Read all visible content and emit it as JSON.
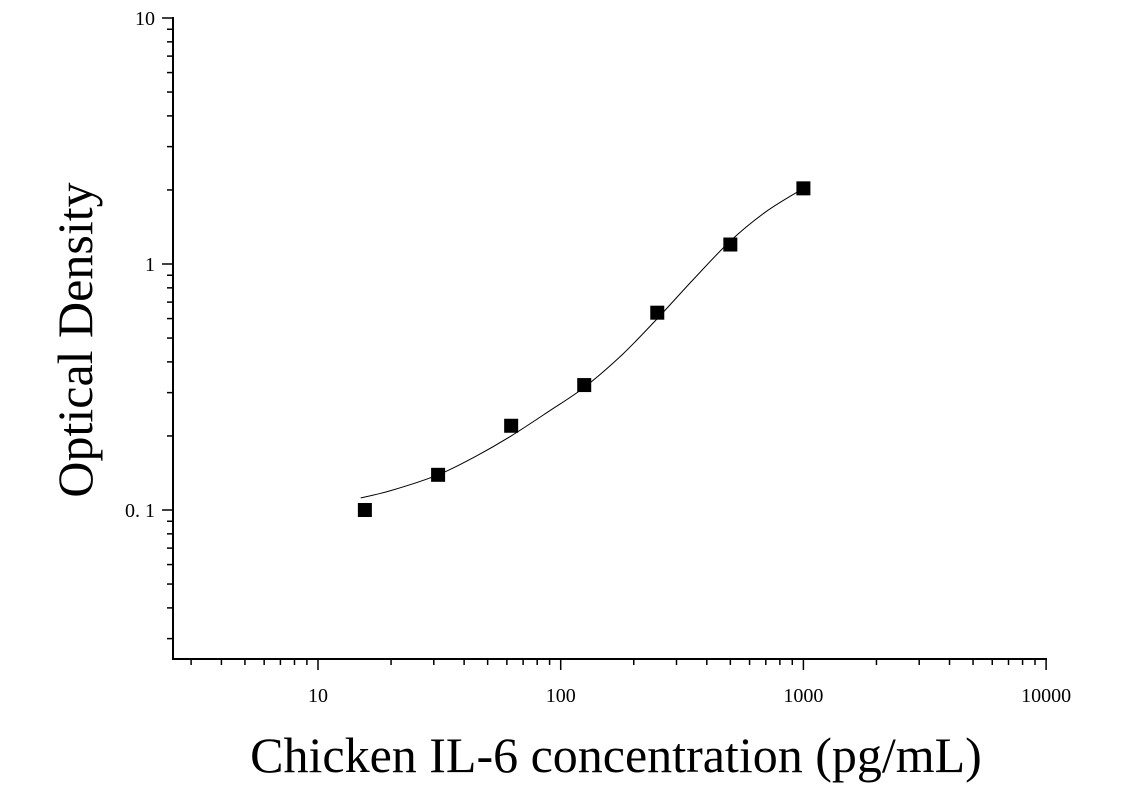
{
  "chart_data": {
    "type": "scatter",
    "xlabel": "Chicken IL-6 concentration (pg/mL)",
    "ylabel": "Optical Density",
    "x_scale": "log",
    "y_scale": "log",
    "xlim": [
      2.5,
      10000
    ],
    "ylim": [
      0.03,
      10
    ],
    "x_ticks": [
      {
        "value": 10,
        "label": "10"
      },
      {
        "value": 100,
        "label": "100"
      },
      {
        "value": 1000,
        "label": "1000"
      },
      {
        "value": 10000,
        "label": "10000"
      }
    ],
    "y_ticks": [
      {
        "value": 0.1,
        "label": "0. 1"
      },
      {
        "value": 1,
        "label": "1"
      },
      {
        "value": 10,
        "label": "10"
      }
    ],
    "grid": false,
    "legend": "none",
    "series": [
      {
        "x": [
          15.6,
          31.25,
          62.5,
          125,
          250,
          500,
          1000
        ],
        "y": [
          0.1,
          0.139,
          0.22,
          0.322,
          0.634,
          1.2,
          2.03
        ]
      }
    ],
    "fit_curve": {
      "x": [
        15,
        20,
        31.25,
        45,
        62.5,
        90,
        125,
        180,
        250,
        350,
        500,
        700,
        1000
      ],
      "y": [
        0.112,
        0.12,
        0.139,
        0.166,
        0.2,
        0.253,
        0.315,
        0.43,
        0.6,
        0.86,
        1.24,
        1.63,
        2.03
      ]
    }
  }
}
